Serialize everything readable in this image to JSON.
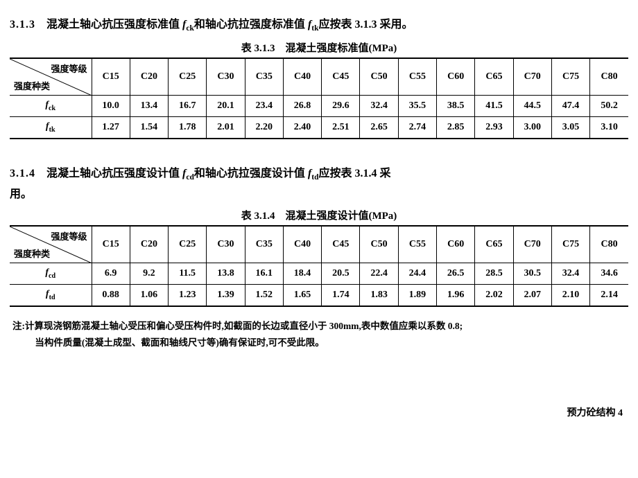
{
  "section313": {
    "num": "3.1.3",
    "text_a": "混凝土轴心抗压强度标准值 ",
    "var1": "f",
    "sub1": "ck",
    "text_b": "和轴心抗拉强度标准值 ",
    "var2": "f",
    "sub2": "tk",
    "text_c": "应按表 3.1.3 采用。"
  },
  "table313": {
    "caption": "表 3.1.3　混凝土强度标准值(MPa)",
    "corner_top": "强度等级",
    "corner_bottom": "强度种类",
    "columns": [
      "C15",
      "C20",
      "C25",
      "C30",
      "C35",
      "C40",
      "C45",
      "C50",
      "C55",
      "C60",
      "C65",
      "C70",
      "C75",
      "C80"
    ],
    "rows": [
      {
        "label_var": "f",
        "label_sub": "ck",
        "vals": [
          "10.0",
          "13.4",
          "16.7",
          "20.1",
          "23.4",
          "26.8",
          "29.6",
          "32.4",
          "35.5",
          "38.5",
          "41.5",
          "44.5",
          "47.4",
          "50.2"
        ]
      },
      {
        "label_var": "f",
        "label_sub": "tk",
        "vals": [
          "1.27",
          "1.54",
          "1.78",
          "2.01",
          "2.20",
          "2.40",
          "2.51",
          "2.65",
          "2.74",
          "2.85",
          "2.93",
          "3.00",
          "3.05",
          "3.10"
        ]
      }
    ]
  },
  "section314": {
    "num": "3.1.4",
    "text_a": "混凝土轴心抗压强度设计值 ",
    "var1": "f",
    "sub1": "cd",
    "text_b": "和轴心抗拉强度设计值 ",
    "var2": "f",
    "sub2": "td",
    "text_c": "应按表 3.1.4 采",
    "text_d": "用。"
  },
  "table314": {
    "caption": "表 3.1.4　混凝土强度设计值(MPa)",
    "corner_top": "强度等级",
    "corner_bottom": "强度种类",
    "columns": [
      "C15",
      "C20",
      "C25",
      "C30",
      "C35",
      "C40",
      "C45",
      "C50",
      "C55",
      "C60",
      "C65",
      "C70",
      "C75",
      "C80"
    ],
    "rows": [
      {
        "label_var": "f",
        "label_sub": "cd",
        "vals": [
          "6.9",
          "9.2",
          "11.5",
          "13.8",
          "16.1",
          "18.4",
          "20.5",
          "22.4",
          "24.4",
          "26.5",
          "28.5",
          "30.5",
          "32.4",
          "34.6"
        ]
      },
      {
        "label_var": "f",
        "label_sub": "td",
        "vals": [
          "0.88",
          "1.06",
          "1.23",
          "1.39",
          "1.52",
          "1.65",
          "1.74",
          "1.83",
          "1.89",
          "1.96",
          "2.02",
          "2.07",
          "2.10",
          "2.14"
        ]
      }
    ]
  },
  "note": {
    "line1": "注:计算现浇钢筋混凝土轴心受压和偏心受压构件时,如截面的长边或直径小于 300mm,表中数值应乘以系数 0.8;",
    "line2": "当构件质量(混凝土成型、截面和轴线尺寸等)确有保证时,可不受此限。"
  },
  "footer": "预力砼结构  4"
}
